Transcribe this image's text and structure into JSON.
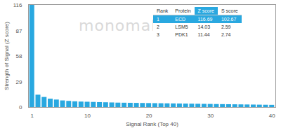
{
  "chart_data": {
    "type": "bar",
    "x_label": "Signal Rank (Top 40)",
    "y_label": "Strength of Signal (Z score)",
    "categories": [
      "1",
      null,
      null,
      null,
      null,
      null,
      null,
      null,
      null,
      "10",
      null,
      null,
      null,
      null,
      null,
      null,
      null,
      null,
      null,
      "20",
      null,
      null,
      null,
      null,
      null,
      null,
      null,
      null,
      null,
      "30",
      null,
      null,
      null,
      null,
      null,
      null,
      null,
      null,
      null,
      "40"
    ],
    "values": [
      116.69,
      14.03,
      11.44,
      9.5,
      8.5,
      7.5,
      7,
      6.5,
      6.2,
      6,
      5.8,
      5.6,
      5.4,
      5.2,
      5,
      4.9,
      4.8,
      4.7,
      4.6,
      4.5,
      4.4,
      4.3,
      4.2,
      4.1,
      4,
      3.9,
      3.8,
      3.7,
      3.6,
      3.5,
      3.4,
      3.3,
      3.2,
      3.1,
      3,
      2.9,
      2.8,
      2.7,
      2.6,
      2.5
    ],
    "color": "#29a8e0",
    "ylim": [
      0,
      117
    ],
    "yticks": [
      0,
      29,
      58,
      87,
      116
    ],
    "grid": false,
    "annotations": [
      "monomabs"
    ],
    "table": {
      "columns": [
        "Rank",
        "Protein",
        "Z score",
        "S score"
      ],
      "rows": [
        [
          1,
          "ECD",
          116.69,
          102.67
        ],
        [
          2,
          "LSM5",
          14.03,
          2.59
        ],
        [
          3,
          "PDK1",
          11.44,
          2.74
        ]
      ]
    }
  }
}
